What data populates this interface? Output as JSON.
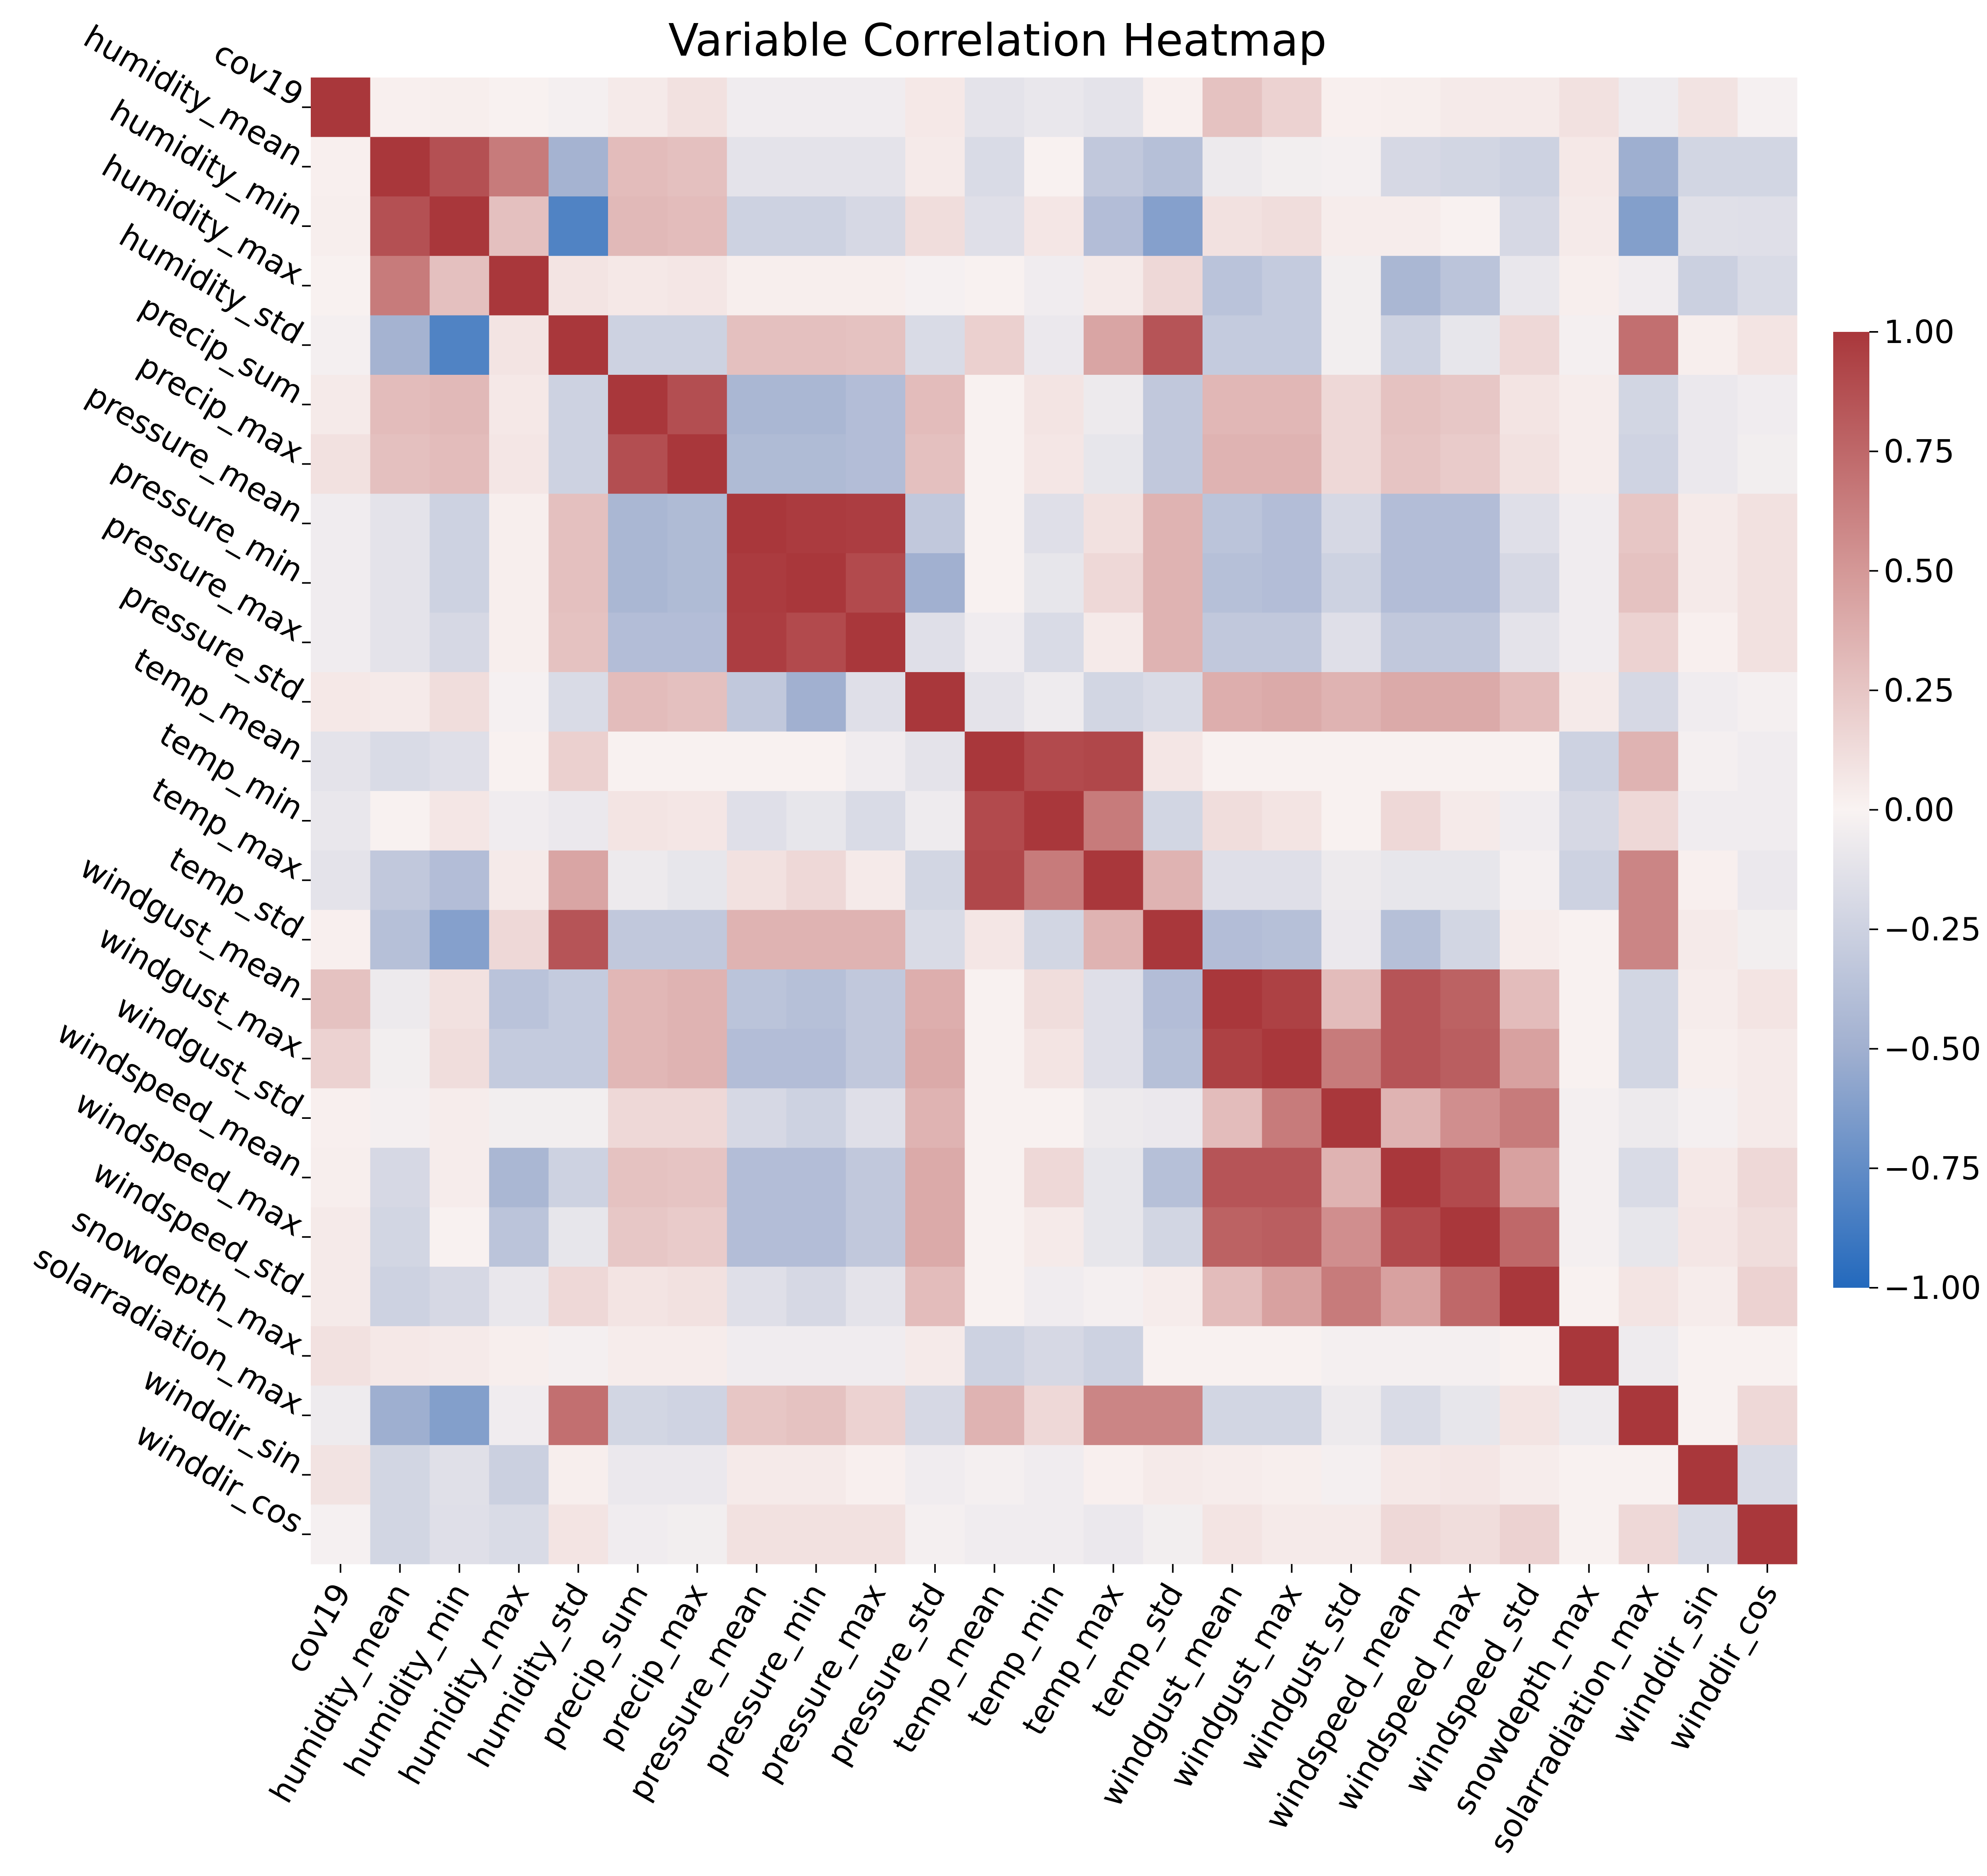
{
  "chart_data": {
    "type": "heatmap",
    "title": "Variable Correlation Heatmap",
    "variables": [
      "cov19",
      "humidity_mean",
      "humidity_min",
      "humidity_max",
      "humidity_std",
      "precip_sum",
      "precip_max",
      "pressure_mean",
      "pressure_min",
      "pressure_max",
      "pressure_std",
      "temp_mean",
      "temp_min",
      "temp_max",
      "temp_std",
      "windgust_mean",
      "windgust_max",
      "windgust_std",
      "windspeed_mean",
      "windspeed_max",
      "windspeed_std",
      "snowdepth_max",
      "solarradiation_max",
      "winddir_sin",
      "winddir_cos"
    ],
    "values": [
      [
        1.0,
        0.02,
        0.03,
        0.01,
        -0.03,
        0.05,
        0.1,
        -0.05,
        -0.05,
        -0.05,
        0.06,
        -0.12,
        -0.09,
        -0.12,
        0.02,
        0.27,
        0.18,
        0.02,
        0.03,
        0.05,
        0.05,
        0.1,
        -0.06,
        0.09,
        -0.02
      ],
      [
        0.02,
        1.0,
        0.87,
        0.65,
        -0.48,
        0.3,
        0.28,
        -0.12,
        -0.12,
        -0.12,
        0.05,
        -0.18,
        0.01,
        -0.32,
        -0.38,
        -0.07,
        -0.04,
        -0.03,
        -0.2,
        -0.22,
        -0.25,
        0.06,
        -0.51,
        -0.22,
        -0.22
      ],
      [
        0.03,
        0.87,
        1.0,
        0.28,
        -0.82,
        0.32,
        0.3,
        -0.25,
        -0.25,
        -0.2,
        0.12,
        -0.15,
        0.07,
        -0.4,
        -0.61,
        0.1,
        0.12,
        0.04,
        0.04,
        0.01,
        -0.2,
        0.05,
        -0.62,
        -0.14,
        -0.15
      ],
      [
        0.01,
        0.65,
        0.28,
        1.0,
        0.08,
        0.06,
        0.07,
        0.03,
        0.03,
        0.03,
        -0.02,
        0.01,
        -0.05,
        0.05,
        0.15,
        -0.36,
        -0.3,
        -0.04,
        -0.45,
        -0.35,
        -0.09,
        0.03,
        -0.05,
        -0.26,
        -0.18
      ],
      [
        -0.03,
        -0.48,
        -0.82,
        0.08,
        1.0,
        -0.25,
        -0.25,
        0.28,
        0.28,
        0.27,
        -0.18,
        0.19,
        -0.08,
        0.43,
        0.85,
        -0.3,
        -0.3,
        -0.04,
        -0.25,
        -0.1,
        0.15,
        -0.03,
        0.71,
        0.03,
        0.08
      ],
      [
        0.05,
        0.3,
        0.32,
        0.06,
        -0.25,
        1.0,
        0.88,
        -0.45,
        -0.45,
        -0.4,
        0.3,
        0.01,
        0.08,
        -0.07,
        -0.32,
        0.33,
        0.33,
        0.15,
        0.27,
        0.24,
        0.08,
        0.04,
        -0.22,
        -0.08,
        -0.05
      ],
      [
        0.1,
        0.28,
        0.3,
        0.07,
        -0.25,
        0.88,
        1.0,
        -0.42,
        -0.42,
        -0.4,
        0.28,
        0.01,
        0.07,
        -0.1,
        -0.32,
        0.35,
        0.35,
        0.15,
        0.26,
        0.22,
        0.1,
        0.04,
        -0.24,
        -0.08,
        -0.04
      ],
      [
        -0.05,
        -0.12,
        -0.25,
        0.03,
        0.28,
        -0.45,
        -0.42,
        1.0,
        0.98,
        0.97,
        -0.32,
        0.01,
        -0.15,
        0.1,
        0.35,
        -0.35,
        -0.4,
        -0.2,
        -0.4,
        -0.4,
        -0.15,
        -0.05,
        0.25,
        0.05,
        0.1
      ],
      [
        -0.05,
        -0.12,
        -0.25,
        0.03,
        0.28,
        -0.45,
        -0.42,
        0.98,
        1.0,
        0.9,
        -0.5,
        0.01,
        -0.1,
        0.15,
        0.35,
        -0.38,
        -0.4,
        -0.25,
        -0.4,
        -0.4,
        -0.2,
        -0.05,
        0.27,
        0.05,
        0.1
      ],
      [
        -0.05,
        -0.12,
        -0.2,
        0.03,
        0.27,
        -0.4,
        -0.4,
        0.97,
        0.9,
        1.0,
        -0.15,
        -0.05,
        -0.18,
        0.05,
        0.35,
        -0.32,
        -0.32,
        -0.15,
        -0.32,
        -0.32,
        -0.12,
        -0.05,
        0.18,
        0.02,
        0.1
      ],
      [
        0.06,
        0.05,
        0.12,
        -0.02,
        -0.18,
        0.3,
        0.28,
        -0.32,
        -0.5,
        -0.15,
        1.0,
        -0.12,
        -0.06,
        -0.22,
        -0.18,
        0.38,
        0.4,
        0.35,
        0.4,
        0.4,
        0.3,
        0.05,
        -0.2,
        -0.05,
        -0.03
      ],
      [
        -0.12,
        -0.18,
        -0.15,
        0.01,
        0.19,
        0.01,
        0.01,
        0.01,
        0.01,
        -0.05,
        -0.12,
        1.0,
        0.9,
        0.92,
        0.07,
        0.01,
        0.01,
        0.01,
        0.01,
        0.01,
        0.01,
        -0.25,
        0.35,
        -0.03,
        -0.05
      ],
      [
        -0.09,
        0.01,
        0.07,
        -0.05,
        -0.08,
        0.08,
        0.07,
        -0.15,
        -0.1,
        -0.18,
        -0.06,
        0.9,
        1.0,
        0.65,
        -0.22,
        0.12,
        0.08,
        0.01,
        0.15,
        0.05,
        -0.05,
        -0.2,
        0.15,
        -0.05,
        -0.05
      ],
      [
        -0.12,
        -0.32,
        -0.4,
        0.05,
        0.43,
        -0.07,
        -0.1,
        0.1,
        0.15,
        0.05,
        -0.22,
        0.92,
        0.65,
        1.0,
        0.35,
        -0.15,
        -0.15,
        -0.07,
        -0.1,
        -0.1,
        -0.03,
        -0.25,
        0.6,
        0.02,
        -0.08
      ],
      [
        0.02,
        -0.38,
        -0.61,
        0.15,
        0.85,
        -0.32,
        -0.32,
        0.35,
        0.35,
        0.35,
        -0.18,
        0.07,
        -0.22,
        0.35,
        1.0,
        -0.4,
        -0.38,
        -0.08,
        -0.38,
        -0.22,
        0.04,
        0.01,
        0.6,
        0.05,
        -0.04
      ],
      [
        0.27,
        -0.07,
        0.1,
        -0.36,
        -0.3,
        0.33,
        0.35,
        -0.35,
        -0.38,
        -0.32,
        0.38,
        0.01,
        0.12,
        -0.15,
        -0.4,
        1.0,
        0.95,
        0.3,
        0.85,
        0.78,
        0.3,
        0.01,
        -0.22,
        0.04,
        0.08
      ],
      [
        0.18,
        -0.04,
        0.12,
        -0.3,
        -0.3,
        0.33,
        0.35,
        -0.4,
        -0.4,
        -0.32,
        0.4,
        0.01,
        0.08,
        -0.15,
        -0.38,
        0.95,
        1.0,
        0.65,
        0.85,
        0.8,
        0.45,
        0.01,
        -0.22,
        0.03,
        0.05
      ],
      [
        0.02,
        -0.03,
        0.04,
        -0.04,
        -0.04,
        0.15,
        0.15,
        -0.2,
        -0.25,
        -0.15,
        0.35,
        0.01,
        0.01,
        -0.07,
        -0.08,
        0.3,
        0.65,
        1.0,
        0.35,
        0.55,
        0.65,
        -0.03,
        -0.07,
        -0.03,
        0.05
      ],
      [
        0.03,
        -0.2,
        0.04,
        -0.45,
        -0.25,
        0.27,
        0.26,
        -0.4,
        -0.4,
        -0.32,
        0.4,
        0.01,
        0.15,
        -0.1,
        -0.38,
        0.85,
        0.85,
        0.35,
        1.0,
        0.9,
        0.45,
        -0.03,
        -0.18,
        0.06,
        0.15
      ],
      [
        0.05,
        -0.22,
        0.01,
        -0.35,
        -0.1,
        0.24,
        0.22,
        -0.4,
        -0.4,
        -0.32,
        0.4,
        0.01,
        0.05,
        -0.1,
        -0.22,
        0.78,
        0.8,
        0.55,
        0.9,
        1.0,
        0.75,
        -0.03,
        -0.1,
        0.07,
        0.12
      ],
      [
        0.05,
        -0.25,
        -0.2,
        -0.09,
        0.15,
        0.08,
        0.1,
        -0.15,
        -0.2,
        -0.12,
        0.3,
        0.01,
        -0.05,
        -0.03,
        0.04,
        0.3,
        0.45,
        0.65,
        0.45,
        0.75,
        1.0,
        0.01,
        0.08,
        0.04,
        0.18
      ],
      [
        0.1,
        0.06,
        0.05,
        0.03,
        -0.03,
        0.04,
        0.04,
        -0.05,
        -0.05,
        -0.05,
        0.05,
        -0.25,
        -0.2,
        -0.25,
        0.01,
        0.01,
        0.01,
        -0.03,
        -0.03,
        -0.03,
        0.01,
        1.0,
        -0.06,
        0.01,
        0.01
      ],
      [
        -0.06,
        -0.51,
        -0.62,
        -0.05,
        0.71,
        -0.22,
        -0.24,
        0.25,
        0.27,
        0.18,
        -0.2,
        0.35,
        0.15,
        0.6,
        0.6,
        -0.22,
        -0.22,
        -0.07,
        -0.18,
        -0.1,
        0.08,
        -0.06,
        1.0,
        0.01,
        0.15
      ],
      [
        0.09,
        -0.22,
        -0.14,
        -0.26,
        0.03,
        -0.08,
        -0.08,
        0.05,
        0.05,
        0.02,
        -0.05,
        -0.03,
        -0.05,
        0.02,
        0.05,
        0.04,
        0.03,
        -0.03,
        0.06,
        0.07,
        0.04,
        0.01,
        0.01,
        1.0,
        -0.18
      ],
      [
        -0.02,
        -0.22,
        -0.15,
        -0.18,
        0.08,
        -0.05,
        -0.04,
        0.1,
        0.1,
        0.1,
        -0.03,
        -0.05,
        -0.05,
        -0.08,
        -0.04,
        0.08,
        0.05,
        0.05,
        0.15,
        0.12,
        0.18,
        0.01,
        0.15,
        -0.18,
        1.0
      ]
    ],
    "colorbar": {
      "min": -1.0,
      "max": 1.0,
      "ticks": [
        1.0,
        0.75,
        0.5,
        0.25,
        0.0,
        -0.25,
        -0.5,
        -0.75,
        -1.0
      ],
      "tick_labels": [
        "1.00",
        "0.75",
        "0.50",
        "0.25",
        "0.00",
        "−0.25",
        "−0.50",
        "−0.75",
        "−1.00"
      ]
    },
    "colormap": {
      "name": "vlag",
      "stops": [
        [
          -1.0,
          "#2369bd"
        ],
        [
          -0.5,
          "#a1b0d0"
        ],
        [
          0.0,
          "#f9f3f2"
        ],
        [
          0.5,
          "#d49897"
        ],
        [
          1.0,
          "#a9373b"
        ]
      ]
    }
  }
}
